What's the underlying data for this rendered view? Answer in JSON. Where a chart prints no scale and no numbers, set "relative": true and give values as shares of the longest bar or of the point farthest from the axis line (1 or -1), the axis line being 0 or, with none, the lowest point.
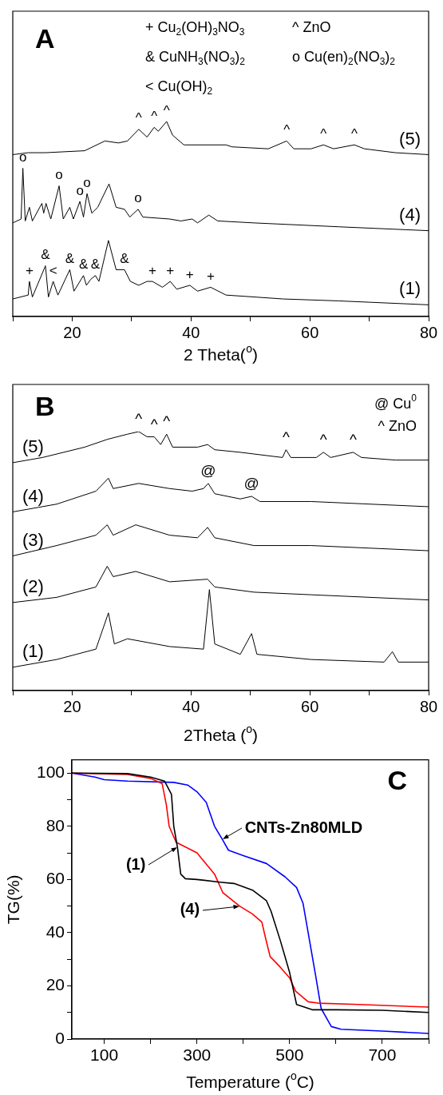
{
  "chart_data": [
    {
      "type": "line",
      "title": "A",
      "xlabel": "2 Theta($^{o}$)",
      "relative": true,
      "xlim": [
        10,
        80
      ],
      "xticks": [
        {
          "value": 10,
          "label": null
        },
        20,
        {
          "value": 30,
          "label": null
        },
        40,
        {
          "value": 50,
          "label": null
        },
        60,
        {
          "value": 70,
          "label": null
        },
        80
      ],
      "grid": false,
      "legend": false,
      "marker": "none",
      "series": [
        {
          "name": "(5)",
          "color": "#000000",
          "x": [
            10,
            12.6,
            15.5,
            22.1,
            25.5,
            27.8,
            29.3,
            31.2,
            32.6,
            33.8,
            34.5,
            35.9,
            36.9,
            38.8,
            45.9,
            46.9,
            53.0,
            56.1,
            57.3,
            60.2,
            62.3,
            64.0,
            67.5,
            69.2,
            74.4,
            80
          ],
          "values": [
            0.83,
            0.84,
            0.84,
            0.85,
            0.9,
            0.89,
            0.9,
            0.96,
            0.92,
            0.97,
            0.95,
            1.0,
            0.93,
            0.88,
            0.88,
            0.87,
            0.86,
            0.9,
            0.86,
            0.86,
            0.88,
            0.86,
            0.88,
            0.86,
            0.84,
            0.83
          ]
        },
        {
          "name": "(4)",
          "color": "#000000",
          "x": [
            10,
            11.4,
            11.7,
            12.1,
            12.8,
            13.3,
            14.9,
            15.2,
            15.6,
            16.4,
            17.8,
            18.5,
            19.6,
            20.2,
            21.3,
            21.9,
            22.5,
            23.3,
            24.3,
            26.2,
            27.4,
            28.8,
            29.7,
            31.1,
            31.9,
            36.4,
            38.3,
            40.2,
            41.1,
            43.0,
            44.5,
            50.6,
            64.9,
            80
          ],
          "values": [
            0.48,
            0.5,
            0.76,
            0.49,
            0.56,
            0.49,
            0.58,
            0.53,
            0.58,
            0.5,
            0.67,
            0.5,
            0.56,
            0.5,
            0.59,
            0.51,
            0.63,
            0.53,
            0.56,
            0.68,
            0.56,
            0.55,
            0.51,
            0.55,
            0.51,
            0.5,
            0.49,
            0.5,
            0.48,
            0.52,
            0.49,
            0.48,
            0.46,
            0.44
          ]
        },
        {
          "name": "(1)",
          "color": "#000000",
          "x": [
            10,
            12.6,
            12.8,
            13.3,
            15.5,
            16.0,
            16.8,
            17.6,
            19.6,
            20.3,
            21.9,
            22.4,
            23.1,
            23.9,
            24.5,
            26.1,
            27.4,
            28.8,
            29.8,
            31.2,
            32.6,
            33.5,
            35.2,
            36.5,
            37.6,
            39.8,
            41.1,
            43.3,
            45.9,
            55.5,
            64.9,
            80
          ],
          "values": [
            0.09,
            0.11,
            0.18,
            0.1,
            0.26,
            0.1,
            0.18,
            0.11,
            0.24,
            0.13,
            0.21,
            0.16,
            0.19,
            0.21,
            0.18,
            0.39,
            0.24,
            0.24,
            0.18,
            0.16,
            0.18,
            0.18,
            0.15,
            0.18,
            0.14,
            0.16,
            0.13,
            0.15,
            0.11,
            0.09,
            0.08,
            0.06
          ]
        }
      ],
      "annotations": [
        "+ Cu$_{2}$(OH)$_{3}$NO$_{3}$",
        "^ ZnO",
        "& CuNH$_{3}$(NO$_{3}$)$_{2}$",
        "o Cu(en)$_{2}$(NO$_{3}$)$_{2}$",
        "< Cu(OH)$_{2}$",
        {
          "text": "^",
          "x": 31.2,
          "y": 0.96
        },
        {
          "text": "^",
          "x": 33.8,
          "y": 0.97
        },
        {
          "text": "^",
          "x": 35.9,
          "y": 1.0
        },
        {
          "text": "^",
          "x": 56.1,
          "y": 0.9
        },
        {
          "text": "^",
          "x": 62.3,
          "y": 0.88
        },
        {
          "text": "^",
          "x": 67.5,
          "y": 0.88
        },
        {
          "text": "o",
          "x": 11.7,
          "y": 0.76
        },
        {
          "text": "o",
          "x": 17.8,
          "y": 0.67
        },
        {
          "text": "o",
          "x": 21.3,
          "y": 0.59
        },
        {
          "text": "o",
          "x": 22.5,
          "y": 0.63
        },
        {
          "text": "o",
          "x": 31.1,
          "y": 0.55
        },
        {
          "text": "+",
          "x": 12.8,
          "y": 0.18
        },
        {
          "text": "&",
          "x": 15.5,
          "y": 0.26
        },
        {
          "text": "<",
          "x": 16.8,
          "y": 0.18
        },
        {
          "text": "&",
          "x": 19.6,
          "y": 0.24
        },
        {
          "text": "&",
          "x": 21.9,
          "y": 0.21
        },
        {
          "text": "&",
          "x": 23.9,
          "y": 0.21
        },
        {
          "text": "&",
          "x": 28.8,
          "y": 0.24
        },
        {
          "text": "+",
          "x": 33.5,
          "y": 0.18
        },
        {
          "text": "+",
          "x": 36.5,
          "y": 0.18
        },
        {
          "text": "+",
          "x": 39.8,
          "y": 0.16
        },
        {
          "text": "+",
          "x": 43.3,
          "y": 0.15
        }
      ]
    },
    {
      "type": "line",
      "title": "B",
      "xlabel": "2Theta ($^{o}$)",
      "relative": true,
      "xlim": [
        10,
        80
      ],
      "xticks": [
        {
          "value": 10,
          "label": null
        },
        20,
        {
          "value": 30,
          "label": null
        },
        40,
        {
          "value": 50,
          "label": null
        },
        60,
        {
          "value": 70,
          "label": null
        },
        80
      ],
      "grid": false,
      "legend": false,
      "marker": "none",
      "series": [
        {
          "name": "(5)",
          "color": "#000000",
          "x": [
            10,
            15.0,
            22.1,
            25.9,
            29.3,
            31.2,
            32.6,
            33.8,
            34.9,
            35.9,
            36.9,
            41.1,
            42.8,
            44.0,
            48.3,
            55.4,
            56.0,
            56.8,
            61.1,
            62.3,
            63.5,
            67.3,
            68.7,
            74.4,
            80
          ],
          "values": [
            0.88,
            0.9,
            0.94,
            0.97,
            0.99,
            1.0,
            0.98,
            0.98,
            0.95,
            0.99,
            0.94,
            0.94,
            0.95,
            0.93,
            0.92,
            0.9,
            0.93,
            0.9,
            0.9,
            0.92,
            0.9,
            0.92,
            0.9,
            0.89,
            0.89
          ]
        },
        {
          "name": "(4)",
          "color": "#000000",
          "x": [
            10,
            17.4,
            24.0,
            26.1,
            26.9,
            31.2,
            36.4,
            40.2,
            42.1,
            42.9,
            44.0,
            48.3,
            50.2,
            51.6,
            60.2,
            80
          ],
          "values": [
            0.69,
            0.72,
            0.77,
            0.82,
            0.78,
            0.8,
            0.78,
            0.77,
            0.78,
            0.8,
            0.76,
            0.74,
            0.75,
            0.73,
            0.73,
            0.71
          ]
        },
        {
          "name": "(3)",
          "color": "#000000",
          "x": [
            10,
            17.4,
            24.0,
            25.9,
            26.9,
            30.7,
            36.4,
            41.1,
            42.8,
            44.0,
            50.6,
            60.2,
            80
          ],
          "values": [
            0.52,
            0.56,
            0.6,
            0.64,
            0.6,
            0.64,
            0.6,
            0.59,
            0.63,
            0.59,
            0.56,
            0.56,
            0.54
          ]
        },
        {
          "name": "(2)",
          "color": "#000000",
          "x": [
            10,
            17.4,
            24.0,
            25.9,
            26.9,
            30.7,
            36.4,
            42.8,
            44.0,
            50.6,
            60.2,
            80
          ],
          "values": [
            0.34,
            0.36,
            0.4,
            0.48,
            0.44,
            0.46,
            0.42,
            0.43,
            0.4,
            0.38,
            0.37,
            0.35
          ]
        },
        {
          "name": "(1)",
          "color": "#000000",
          "x": [
            10,
            17.4,
            24.0,
            26.1,
            27.1,
            29.3,
            36.4,
            42.1,
            43.1,
            44.0,
            48.3,
            50.2,
            51.1,
            60.2,
            72.5,
            73.9,
            74.9,
            80
          ],
          "values": [
            0.09,
            0.12,
            0.16,
            0.3,
            0.18,
            0.2,
            0.17,
            0.16,
            0.39,
            0.18,
            0.14,
            0.22,
            0.14,
            0.12,
            0.11,
            0.15,
            0.11,
            0.11
          ]
        }
      ],
      "annotations": [
        "@ Cu$^{0}$",
        "^ ZnO",
        {
          "text": "^",
          "x": 31.2,
          "y": 1.0
        },
        {
          "text": "^",
          "x": 33.8,
          "y": 0.98
        },
        {
          "text": "^",
          "x": 35.9,
          "y": 0.99
        },
        {
          "text": "^",
          "x": 56.0,
          "y": 0.93
        },
        {
          "text": "^",
          "x": 62.3,
          "y": 0.92
        },
        {
          "text": "^",
          "x": 67.3,
          "y": 0.92
        },
        {
          "text": "@",
          "x": 42.9,
          "y": 0.8
        },
        {
          "text": "@",
          "x": 50.2,
          "y": 0.75
        }
      ]
    },
    {
      "type": "line",
      "title": "C",
      "xlabel": "Temperature ($^{o}$C)",
      "ylabel": "TG(%)",
      "xlim": [
        30,
        800
      ],
      "xticks": [
        100,
        {
          "value": 200,
          "label": null
        },
        300,
        {
          "value": 400,
          "label": null
        },
        500,
        {
          "value": 600,
          "label": null
        },
        700,
        {
          "value": 800,
          "label": null
        }
      ],
      "ylim": [
        0,
        105
      ],
      "yticks": [
        0,
        {
          "value": 10,
          "label": null
        },
        20,
        {
          "value": 30,
          "label": null
        },
        40,
        {
          "value": 50,
          "label": null
        },
        60,
        {
          "value": 70,
          "label": null
        },
        80,
        {
          "value": 90,
          "label": null
        },
        100
      ],
      "grid": false,
      "legend": false,
      "marker": "none",
      "series": [
        {
          "color": "#000000",
          "x": [
            30,
            150,
            200,
            230,
            245,
            250,
            258,
            265,
            275,
            300,
            350,
            380,
            420,
            450,
            460,
            480,
            500,
            515,
            550,
            600,
            700,
            800
          ],
          "values": [
            100,
            99.8,
            98.5,
            97,
            92,
            80,
            72,
            62,
            60.3,
            60,
            59,
            58.5,
            56,
            52,
            48,
            37,
            25,
            13,
            11,
            11,
            10.8,
            10
          ]
        },
        {
          "color": "#ff0000",
          "x": [
            30,
            150,
            200,
            225,
            234,
            240,
            255,
            300,
            338,
            356,
            392,
            420,
            440,
            448,
            458,
            480,
            500,
            513,
            540,
            562,
            650,
            800
          ],
          "values": [
            100,
            99.5,
            98,
            96,
            88,
            80,
            74,
            70,
            62,
            55,
            50,
            47,
            44,
            38,
            31,
            27,
            23,
            18,
            14,
            13.5,
            13,
            12
          ]
        },
        {
          "color": "#0000ff",
          "x": [
            30,
            80,
            100,
            150,
            250,
            280,
            300,
            320,
            338,
            355,
            368,
            400,
            450,
            490,
            515,
            529,
            540,
            556,
            568,
            590,
            611,
            700,
            800
          ],
          "values": [
            100,
            98.5,
            97.5,
            97,
            96.5,
            95.5,
            93,
            89,
            80,
            75,
            71,
            69,
            66,
            61,
            57,
            51,
            40,
            24,
            11.5,
            4.7,
            3.7,
            3,
            2.1
          ]
        }
      ],
      "annotations": [
        {
          "text": "(1)",
          "x": 258,
          "y": 72
        },
        {
          "text": "(4)",
          "x": 392,
          "y": 50
        },
        {
          "text": "CNTs-Zn80MLD",
          "x": 355,
          "y": 75
        }
      ]
    }
  ]
}
